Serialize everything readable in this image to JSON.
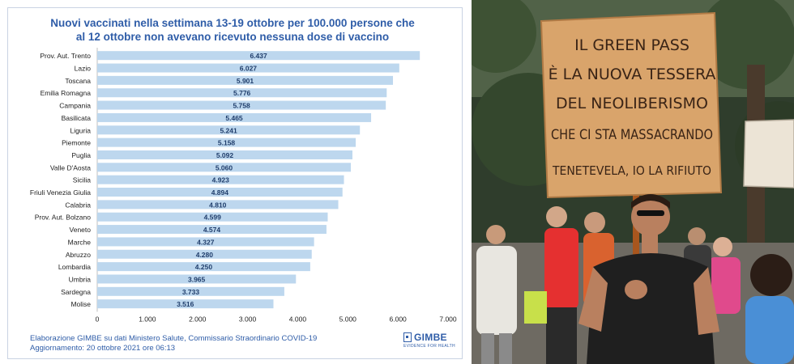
{
  "chart_data": {
    "type": "bar",
    "orientation": "horizontal",
    "title_lines": [
      "Nuovi vaccinati nella settimana  13-19 ottobre per 100.000 persone che",
      "al 12 ottobre non avevano ricevuto nessuna dose di vaccino"
    ],
    "categories": [
      "Prov. Aut. Trento",
      "Lazio",
      "Toscana",
      "Emilia Romagna",
      "Campania",
      "Basilicata",
      "Liguria",
      "Piemonte",
      "Puglia",
      "Valle D'Aosta",
      "Sicilia",
      "Friuli Venezia Giulia",
      "Calabria",
      "Prov. Aut. Bolzano",
      "Veneto",
      "Marche",
      "Abruzzo",
      "Lombardia",
      "Umbria",
      "Sardegna",
      "Molise"
    ],
    "values": [
      6437,
      6027,
      5901,
      5776,
      5758,
      5465,
      5241,
      5158,
      5092,
      5060,
      4923,
      4894,
      4810,
      4599,
      4574,
      4327,
      4280,
      4250,
      3965,
      3733,
      3516
    ],
    "value_labels": [
      "6.437",
      "6.027",
      "5.901",
      "5.776",
      "5.758",
      "5.465",
      "5.241",
      "5.158",
      "5.092",
      "5.060",
      "4.923",
      "4.894",
      "4.810",
      "4.599",
      "4.574",
      "4.327",
      "4.280",
      "4.250",
      "3.965",
      "3.733",
      "3.516"
    ],
    "xlim": [
      0,
      7000
    ],
    "x_ticks": [
      0,
      1000,
      2000,
      3000,
      4000,
      5000,
      6000,
      7000
    ],
    "x_tick_labels": [
      "0",
      "1.000",
      "2.000",
      "3.000",
      "4.000",
      "5.000",
      "6.000",
      "7.000"
    ],
    "bar_color": "#bdd7ee",
    "label_color": "#1f3d6b",
    "title_color": "#2f5da8",
    "grid": false,
    "legend": "none"
  },
  "footer": {
    "source": "Elaborazione GIMBE su dati Ministero Salute, Commissario Straordinario COVID-19",
    "updated": "Aggiornamento: 20 ottobre 2021 ore 06:13"
  },
  "logo": {
    "name": "GIMBE",
    "tagline": "EVIDENCE FOR HEALTH"
  },
  "photo": {
    "sign_lines": [
      "IL GREEN PASS",
      "È LA NUOVA TESSERA",
      "DEL NEOLIBERISMO",
      "CHE CI STA MASSACRANDO",
      "TENETEVELA, IO LA RIFIUTO"
    ],
    "sign_color": "#d9a46b",
    "ink_color": "#3a2416"
  }
}
